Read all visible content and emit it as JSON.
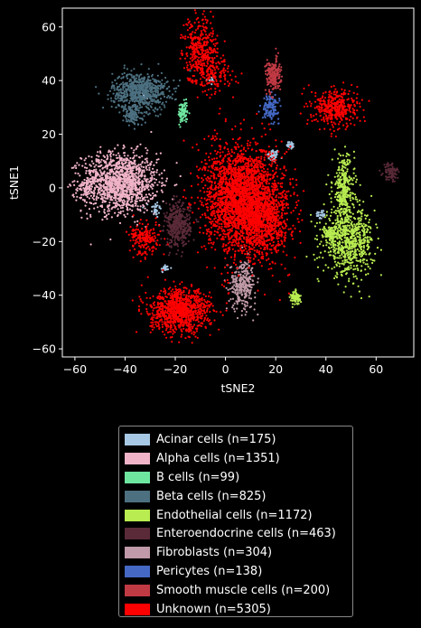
{
  "chart_data": {
    "type": "scatter",
    "title": "",
    "xlabel": "tSNE2",
    "ylabel": "tSNE1",
    "xlim": [
      -65,
      75
    ],
    "ylim": [
      -63,
      67
    ],
    "xticks": [
      -60,
      -40,
      -20,
      0,
      20,
      40,
      60
    ],
    "yticks": [
      -60,
      -40,
      -20,
      0,
      20,
      40,
      60
    ],
    "grid": false,
    "legend_placement": "below",
    "series": [
      {
        "name": "Acinar cells (n=175)",
        "color": "#a6c8e4",
        "clusters": [
          {
            "cx": 19,
            "cy": 12,
            "sx": 1.2,
            "sy": 1.2,
            "n": 50
          },
          {
            "cx": 26,
            "cy": 16,
            "sx": 0.8,
            "sy": 0.8,
            "n": 25
          },
          {
            "cx": -28,
            "cy": -8,
            "sx": 1.2,
            "sy": 1.6,
            "n": 30
          },
          {
            "cx": -24,
            "cy": -30,
            "sx": 1,
            "sy": 0.8,
            "n": 20
          },
          {
            "cx": -6,
            "cy": 40,
            "sx": 1,
            "sy": 1,
            "n": 10
          },
          {
            "cx": -32,
            "cy": 35,
            "sx": 1,
            "sy": 1,
            "n": 15
          },
          {
            "cx": 38,
            "cy": -10,
            "sx": 1,
            "sy": 1,
            "n": 25
          }
        ]
      },
      {
        "name": "Alpha cells (n=1351)",
        "color": "#f0b3c8",
        "clusters": [
          {
            "cx": -42,
            "cy": 2,
            "sx": 7.5,
            "sy": 5.5,
            "n": 1300
          },
          {
            "cx": -55,
            "cy": 0,
            "sx": 1.5,
            "sy": 2.5,
            "n": 51
          }
        ]
      },
      {
        "name": "B cells (n=99)",
        "color": "#6ee6a0",
        "clusters": [
          {
            "cx": -17,
            "cy": 28,
            "sx": 0.9,
            "sy": 2,
            "n": 99
          }
        ]
      },
      {
        "name": "Beta cells (n=825)",
        "color": "#4c7080",
        "clusters": [
          {
            "cx": -34,
            "cy": 36,
            "sx": 5.5,
            "sy": 3.5,
            "n": 700
          },
          {
            "cx": -37,
            "cy": 27,
            "sx": 2,
            "sy": 2,
            "n": 125
          }
        ]
      },
      {
        "name": "Endothelial cells (n=1172)",
        "color": "#b8ec50",
        "clusters": [
          {
            "cx": 47,
            "cy": 0,
            "sx": 2.2,
            "sy": 6,
            "n": 300
          },
          {
            "cx": 49,
            "cy": -20,
            "sx": 5,
            "sy": 6,
            "n": 700
          },
          {
            "cx": 42,
            "cy": -17,
            "sx": 1.5,
            "sy": 1.5,
            "n": 92
          },
          {
            "cx": 28,
            "cy": -41,
            "sx": 1,
            "sy": 1.3,
            "n": 80
          }
        ]
      },
      {
        "name": "Enteroendocrine cells (n=463)",
        "color": "#5a2a38",
        "clusters": [
          {
            "cx": -19,
            "cy": -14,
            "sx": 2.5,
            "sy": 4,
            "n": 380
          },
          {
            "cx": 66,
            "cy": 6,
            "sx": 1.5,
            "sy": 1.8,
            "n": 83
          }
        ]
      },
      {
        "name": "Fibroblasts (n=304)",
        "color": "#c09aa8",
        "clusters": [
          {
            "cx": 7,
            "cy": -36,
            "sx": 2.5,
            "sy": 4.5,
            "n": 304
          }
        ]
      },
      {
        "name": "Pericytes (n=138)",
        "color": "#4468c4",
        "clusters": [
          {
            "cx": 18,
            "cy": 30,
            "sx": 1.6,
            "sy": 2.2,
            "n": 138
          }
        ]
      },
      {
        "name": "Smooth muscle cells (n=200)",
        "color": "#c03a44",
        "clusters": [
          {
            "cx": 19,
            "cy": 42,
            "sx": 1.5,
            "sy": 3,
            "n": 200
          }
        ]
      },
      {
        "name": "Unknown (n=5305)",
        "color": "#ff0000",
        "clusters": [
          {
            "cx": 6,
            "cy": -4,
            "sx": 7,
            "sy": 10,
            "n": 2400
          },
          {
            "cx": 14,
            "cy": -10,
            "sx": 4,
            "sy": 8,
            "n": 500
          },
          {
            "cx": -18,
            "cy": -46,
            "sx": 6,
            "sy": 4,
            "n": 1000
          },
          {
            "cx": -10,
            "cy": 52,
            "sx": 3.5,
            "sy": 6,
            "n": 350
          },
          {
            "cx": -5,
            "cy": 42,
            "sx": 4,
            "sy": 3,
            "n": 150
          },
          {
            "cx": 44,
            "cy": 30,
            "sx": 4.5,
            "sy": 3.5,
            "n": 400
          },
          {
            "cx": -32,
            "cy": -19,
            "sx": 3,
            "sy": 3,
            "n": 200
          },
          {
            "cx": 20,
            "cy": -10,
            "sx": 4,
            "sy": 8,
            "n": 305
          }
        ]
      }
    ]
  }
}
